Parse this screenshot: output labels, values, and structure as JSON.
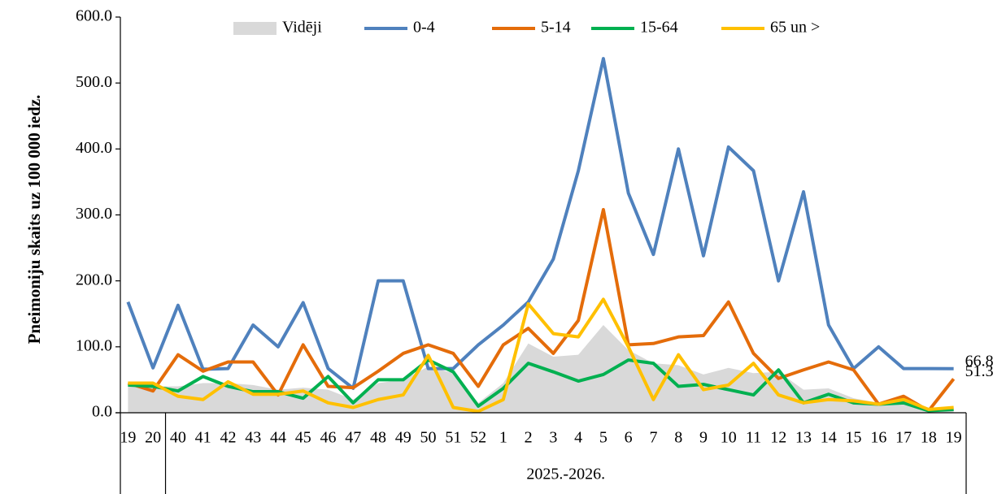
{
  "chart_data": {
    "type": "line",
    "y_label": "Pneimoniju skaits uz 100 000 iedz.",
    "group_label": "2025.-2026.",
    "categories": [
      "19",
      "20",
      "40",
      "41",
      "42",
      "43",
      "44",
      "45",
      "46",
      "47",
      "48",
      "49",
      "50",
      "51",
      "52",
      "1",
      "2",
      "3",
      "4",
      "5",
      "6",
      "7",
      "8",
      "9",
      "10",
      "11",
      "12",
      "13",
      "14",
      "15",
      "16",
      "17",
      "18",
      "19"
    ],
    "ylim": [
      0,
      600
    ],
    "yticks": [
      {
        "value": 0,
        "label": "0.0"
      },
      {
        "value": 100,
        "label": "100.0"
      },
      {
        "value": 200,
        "label": "200.0"
      },
      {
        "value": 300,
        "label": "300.0"
      },
      {
        "value": 400,
        "label": "400.0"
      },
      {
        "value": 500,
        "label": "500.0"
      },
      {
        "value": 600,
        "label": "600.0"
      }
    ],
    "series": [
      {
        "name": "Vidēji",
        "kind": "area",
        "color": "#d9d9d9",
        "values": [
          45,
          40,
          40,
          45,
          45,
          42,
          35,
          38,
          35,
          20,
          45,
          50,
          70,
          60,
          15,
          45,
          105,
          85,
          88,
          133,
          95,
          75,
          72,
          58,
          68,
          60,
          62,
          35,
          37,
          22,
          15,
          15,
          5,
          10
        ]
      },
      {
        "name": "0-4",
        "kind": "line",
        "color": "#4f81bd",
        "end_label": true,
        "values": [
          168,
          68,
          163,
          66,
          67,
          133,
          100,
          167,
          67,
          37,
          200,
          200,
          67,
          67,
          103,
          133,
          168,
          233,
          367,
          537,
          333,
          240,
          400,
          238,
          403,
          367,
          200,
          335,
          133,
          67,
          100,
          67,
          67,
          66.8
        ]
      },
      {
        "name": "5-14",
        "kind": "line",
        "color": "#e46c0a",
        "end_label": true,
        "values": [
          45,
          33,
          88,
          63,
          77,
          77,
          27,
          103,
          40,
          38,
          63,
          90,
          103,
          90,
          40,
          103,
          128,
          90,
          140,
          308,
          103,
          105,
          115,
          117,
          168,
          90,
          52,
          65,
          77,
          65,
          13,
          25,
          3,
          51.3
        ]
      },
      {
        "name": "15-64",
        "kind": "line",
        "color": "#00b050",
        "values": [
          42,
          40,
          33,
          55,
          40,
          32,
          32,
          22,
          55,
          15,
          50,
          50,
          80,
          62,
          10,
          37,
          75,
          62,
          48,
          58,
          80,
          75,
          40,
          43,
          35,
          27,
          65,
          15,
          28,
          15,
          13,
          15,
          3,
          5
        ]
      },
      {
        "name": "65 un >",
        "kind": "line",
        "color": "#ffc000",
        "values": [
          45,
          45,
          25,
          20,
          47,
          28,
          28,
          33,
          15,
          8,
          20,
          27,
          87,
          8,
          2,
          20,
          165,
          120,
          115,
          172,
          100,
          20,
          88,
          35,
          42,
          75,
          27,
          15,
          20,
          18,
          13,
          20,
          5,
          8
        ]
      }
    ]
  }
}
